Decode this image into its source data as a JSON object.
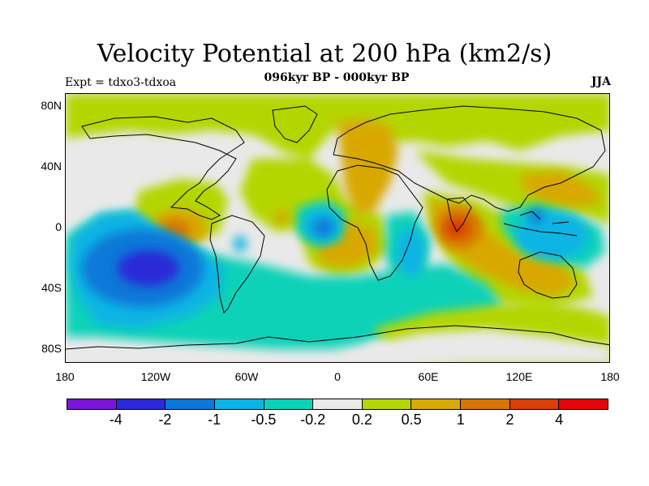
{
  "title": "Velocity Potential at 200 hPa (km2/s)",
  "subtitle": "096kyr BP - 000kyr BP",
  "expt": "Expt = tdxo3-tdxoa",
  "season": "JJA",
  "lat_ticks": [
    "80N",
    "40N",
    "0",
    "40S",
    "80S"
  ],
  "lon_ticks": [
    "180",
    "120W",
    "60W",
    "0",
    "60E",
    "120E",
    "180"
  ],
  "colorbar": {
    "colors": [
      "#7b16d8",
      "#2a2ad8",
      "#0a78d8",
      "#0ab4e4",
      "#0ad2b8",
      "#e9e9e9",
      "#b4d606",
      "#d8a806",
      "#d87406",
      "#d84006",
      "#e40606"
    ],
    "labels": [
      "-4",
      "-2",
      "-1",
      "-0.5",
      "-0.2",
      "0.2",
      "0.5",
      "1",
      "2",
      "4"
    ]
  }
}
